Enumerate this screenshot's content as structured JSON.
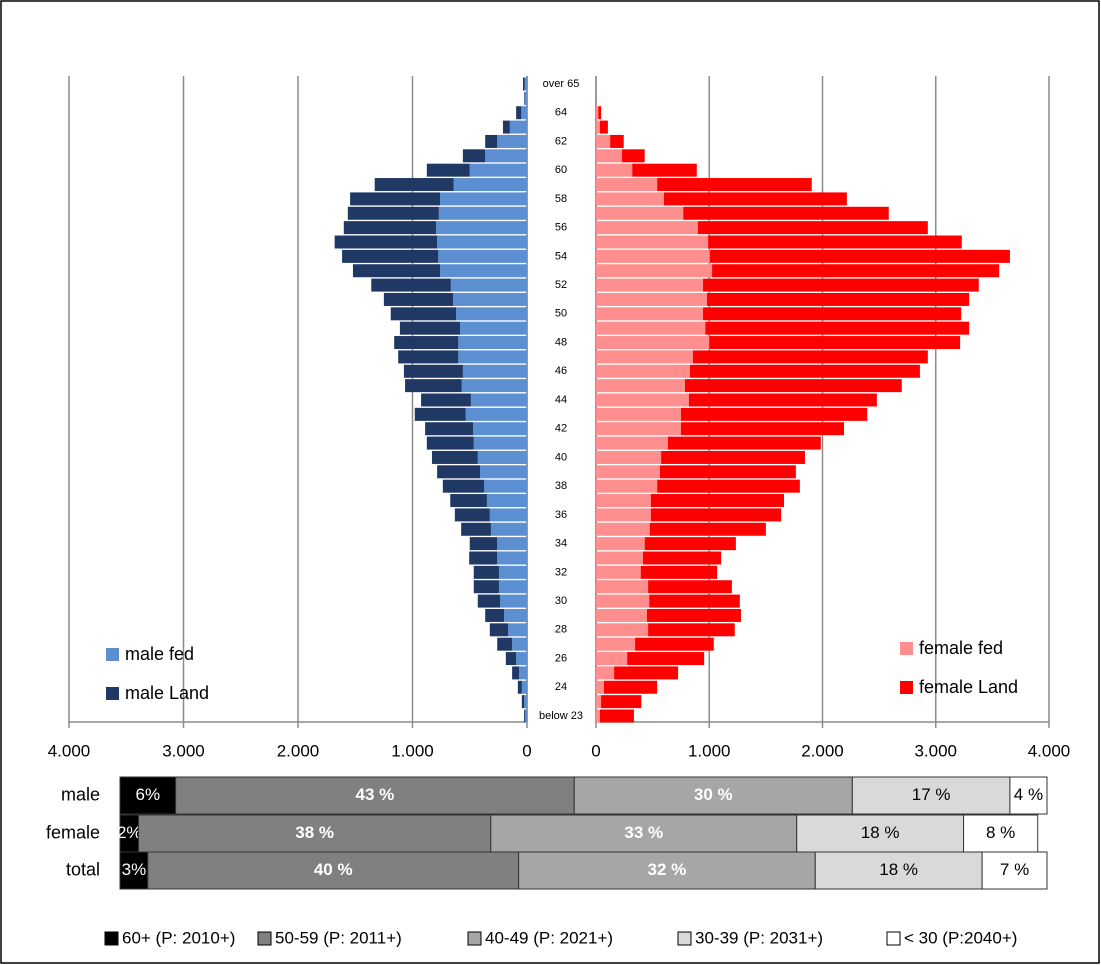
{
  "chart_data": [
    {
      "type": "pyramid",
      "categories": [
        "over 65",
        null,
        "64",
        null,
        "62",
        null,
        "60",
        null,
        "58",
        null,
        "56",
        null,
        "54",
        null,
        "52",
        null,
        "50",
        null,
        "48",
        null,
        "46",
        null,
        "44",
        null,
        "42",
        null,
        "40",
        null,
        "38",
        null,
        "36",
        null,
        "34",
        null,
        "32",
        null,
        "30",
        null,
        "28",
        null,
        "26",
        null,
        "24",
        null,
        "below 23"
      ],
      "grid": true,
      "left": {
        "legend": "lower left",
        "xlim": [
          4000,
          0
        ],
        "xticks": [
          {
            "value": 4000,
            "label": "4.000"
          },
          {
            "value": 3000,
            "label": "3.000"
          },
          {
            "value": 2000,
            "label": "2.000"
          },
          {
            "value": 1000,
            "label": "1.000"
          },
          0
        ],
        "series": [
          {
            "name": "male fed",
            "color": "#5b8fd2",
            "values": [
              20,
              20,
              50,
              150,
              260,
              365,
              500,
              640,
              760,
              770,
              795,
              785,
              775,
              760,
              665,
              645,
              620,
              585,
              600,
              600,
              560,
              570,
              490,
              535,
              470,
              465,
              430,
              410,
              375,
              350,
              325,
              315,
              260,
              260,
              245,
              245,
              235,
              200,
              165,
              130,
              95,
              70,
              45,
              25,
              15
            ]
          },
          {
            "name": "male Land",
            "color": "#1f3864",
            "values": [
              15,
              5,
              45,
              60,
              105,
              195,
              375,
              690,
              785,
              795,
              805,
              895,
              840,
              760,
              695,
              605,
              570,
              525,
              560,
              525,
              515,
              495,
              435,
              445,
              420,
              410,
              400,
              375,
              360,
              320,
              305,
              260,
              240,
              245,
              220,
              220,
              195,
              165,
              160,
              130,
              90,
              60,
              35,
              20,
              10
            ]
          }
        ]
      },
      "right": {
        "legend": "lower right",
        "xlim": [
          0,
          4000
        ],
        "xticks": [
          0,
          {
            "value": 1000,
            "label": "1.000"
          },
          {
            "value": 2000,
            "label": "2.000"
          },
          {
            "value": 3000,
            "label": "3.000"
          },
          {
            "value": 4000,
            "label": "4.000"
          }
        ],
        "series": [
          {
            "name": "female fed",
            "color": "#ff8f8f",
            "values": [
              0,
              0,
              20,
              35,
              125,
              230,
              320,
              540,
              600,
              770,
              900,
              990,
              1005,
              1025,
              945,
              980,
              945,
              965,
              1000,
              855,
              830,
              785,
              820,
              750,
              750,
              635,
              575,
              565,
              540,
              485,
              485,
              475,
              430,
              415,
              395,
              460,
              470,
              450,
              460,
              345,
              275,
              160,
              70,
              45,
              35
            ]
          },
          {
            "name": "female Land",
            "color": "#ff0000",
            "values": [
              0,
              0,
              25,
              70,
              120,
              200,
              570,
              1365,
              1615,
              1815,
              2030,
              2240,
              2650,
              2535,
              2435,
              2315,
              2280,
              2330,
              2215,
              2075,
              2030,
              1915,
              1660,
              1645,
              1440,
              1350,
              1270,
              1200,
              1260,
              1175,
              1150,
              1025,
              805,
              690,
              675,
              740,
              800,
              830,
              765,
              695,
              680,
              565,
              470,
              355,
              300
            ]
          }
        ]
      }
    },
    {
      "type": "stacked_bar",
      "categories": [
        "male",
        "female",
        "total"
      ],
      "xlim": [
        0,
        100
      ],
      "series": [
        {
          "name": "60+ (P: 2010+)",
          "color": "#000000",
          "label_color": "#ffffff",
          "values": [
            6,
            2,
            3
          ],
          "value_labels": [
            "6%",
            "2%",
            "3%"
          ]
        },
        {
          "name": "50-59 (P: 2011+)",
          "color": "#808080",
          "label_color": "#ffffff",
          "values": [
            43,
            38,
            40
          ],
          "value_labels": [
            "43 %",
            "38 %",
            "40 %"
          ]
        },
        {
          "name": "40-49 (P: 2021+)",
          "color": "#a6a6a6",
          "label_color": "#ffffff",
          "values": [
            30,
            33,
            32
          ],
          "value_labels": [
            "30 %",
            "33 %",
            "32 %"
          ]
        },
        {
          "name": "30-39 (P: 2031+)",
          "color": "#d9d9d9",
          "label_color": "#000000",
          "values": [
            17,
            18,
            18
          ],
          "value_labels": [
            "17 %",
            "18 %",
            "18 %"
          ]
        },
        {
          "name": "< 30 (P:2040+)",
          "color": "#ffffff",
          "label_color": "#000000",
          "values": [
            4,
            8,
            7
          ],
          "value_labels": [
            "4 %",
            "8 %",
            "7 %"
          ]
        }
      ]
    }
  ]
}
